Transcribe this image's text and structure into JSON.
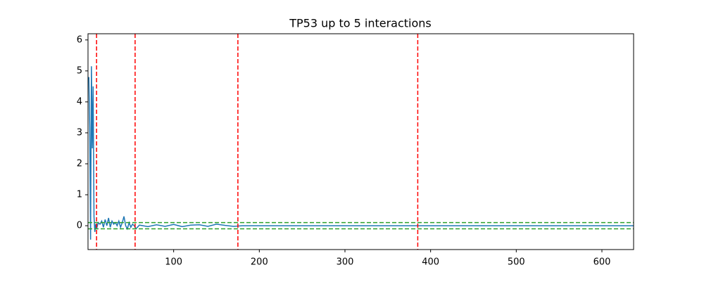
{
  "chart_data": {
    "type": "line",
    "title": "TP53 up to 5 interactions",
    "x": [
      1,
      2,
      3,
      4,
      5,
      6,
      7,
      8,
      9,
      10,
      12,
      14,
      16,
      18,
      20,
      22,
      24,
      26,
      28,
      30,
      32,
      34,
      36,
      38,
      40,
      42,
      44,
      46,
      48,
      50,
      52,
      54,
      56,
      60,
      70,
      80,
      90,
      100,
      110,
      120,
      130,
      140,
      150,
      160,
      170,
      180,
      200,
      637
    ],
    "series": [
      {
        "color": "#1f77b4",
        "values": [
          4.8,
          3.2,
          -0.45,
          5.15,
          2.5,
          4.5,
          0.3,
          -0.2,
          0.05,
          -0.1,
          0.1,
          0.05,
          0.15,
          -0.05,
          0.2,
          0.0,
          0.25,
          -0.05,
          0.15,
          0.05,
          0.1,
          0.0,
          0.15,
          -0.05,
          0.1,
          0.3,
          0.0,
          -0.1,
          0.1,
          -0.05,
          0.05,
          0.0,
          -0.1,
          0.02,
          -0.03,
          0.03,
          -0.02,
          0.04,
          -0.03,
          0.02,
          0.03,
          -0.02,
          0.05,
          0.01,
          -0.02,
          0.0,
          0.0,
          0.0
        ]
      }
    ],
    "vlines": [
      10,
      55,
      175,
      385
    ],
    "vline_color": "#ff0000",
    "hlines": [
      0.1,
      -0.1
    ],
    "hline_color": "#2ca02c",
    "xlim": [
      0,
      637
    ],
    "ylim": [
      -0.77,
      6.2
    ],
    "xticks": [
      100,
      200,
      300,
      400,
      500,
      600
    ],
    "yticks": [
      0,
      1,
      2,
      3,
      4,
      5,
      6
    ]
  }
}
